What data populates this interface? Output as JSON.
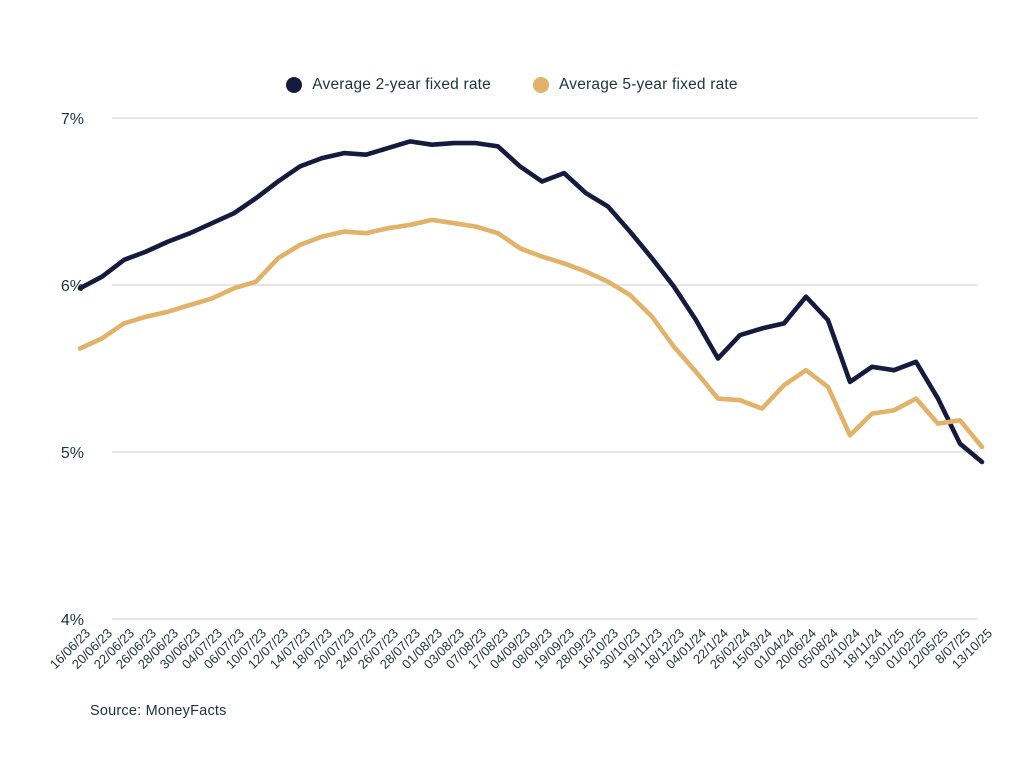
{
  "page": {
    "background_color": "#ffffff",
    "text_color": "#1d3438",
    "grid_color": "#d8d8d8"
  },
  "legend": {
    "items": [
      {
        "label": "Average 2-year fixed rate",
        "color": "#141b3e"
      },
      {
        "label": "Average 5-year fixed rate",
        "color": "#e3b269"
      }
    ]
  },
  "source": {
    "text": "Source: MoneyFacts"
  },
  "chart_data": {
    "type": "line",
    "title": "",
    "xlabel": "",
    "ylabel": "",
    "grid": "horizontal",
    "legend_position": "top",
    "yaxis": {
      "unit": "%",
      "min": 4,
      "max": 7,
      "ticks": [
        {
          "label": "7%",
          "value": 7
        },
        {
          "label": "6%",
          "value": 6
        },
        {
          "label": "5%",
          "value": 5
        },
        {
          "label": "4%",
          "value": 4
        }
      ]
    },
    "categories": [
      "16/06/23",
      "20/06/23",
      "22/06/23",
      "26/06/23",
      "28/06/23",
      "30/06/23",
      "04/07/23",
      "06/07/23",
      "10/07/23",
      "12/07/23",
      "14/07/23",
      "18/07/23",
      "20/07/23",
      "24/07/23",
      "26/07/23",
      "28/07/23",
      "01/08/23",
      "03/08/23",
      "07/08/23",
      "17/08/23",
      "04/09/23",
      "08/09/23",
      "19/09/23",
      "28/09/23",
      "16/10/23",
      "30/10/23",
      "19/11/23",
      "18/12/23",
      "04/01/24",
      "22/1/24",
      "26/02/24",
      "15/03/24",
      "01/04/24",
      "20/06/24",
      "05/08/24",
      "03/10/24",
      "18/11/24",
      "13/01/25",
      "01/02/25",
      "12/05/25",
      "8/07/25",
      "13/10/25"
    ],
    "series": [
      {
        "name": "Average 2-year fixed rate",
        "color": "#141b3e",
        "values": [
          5.98,
          6.05,
          6.15,
          6.2,
          6.26,
          6.31,
          6.37,
          6.43,
          6.52,
          6.62,
          6.71,
          6.76,
          6.79,
          6.78,
          6.82,
          6.86,
          6.84,
          6.85,
          6.85,
          6.83,
          6.71,
          6.62,
          6.67,
          6.55,
          6.47,
          6.32,
          6.16,
          5.99,
          5.79,
          5.56,
          5.7,
          5.74,
          5.77,
          5.93,
          5.79,
          5.42,
          5.51,
          5.49,
          5.54,
          5.32,
          5.05,
          4.94
        ]
      },
      {
        "name": "Average 5-year fixed rate",
        "color": "#e3b269",
        "values": [
          5.62,
          5.68,
          5.77,
          5.81,
          5.84,
          5.88,
          5.92,
          5.98,
          6.02,
          6.16,
          6.24,
          6.29,
          6.32,
          6.31,
          6.34,
          6.36,
          6.39,
          6.37,
          6.35,
          6.31,
          6.22,
          6.17,
          6.13,
          6.08,
          6.02,
          5.94,
          5.81,
          5.63,
          5.48,
          5.32,
          5.31,
          5.26,
          5.4,
          5.49,
          5.39,
          5.1,
          5.23,
          5.25,
          5.32,
          5.17,
          5.19,
          5.03
        ]
      }
    ]
  }
}
